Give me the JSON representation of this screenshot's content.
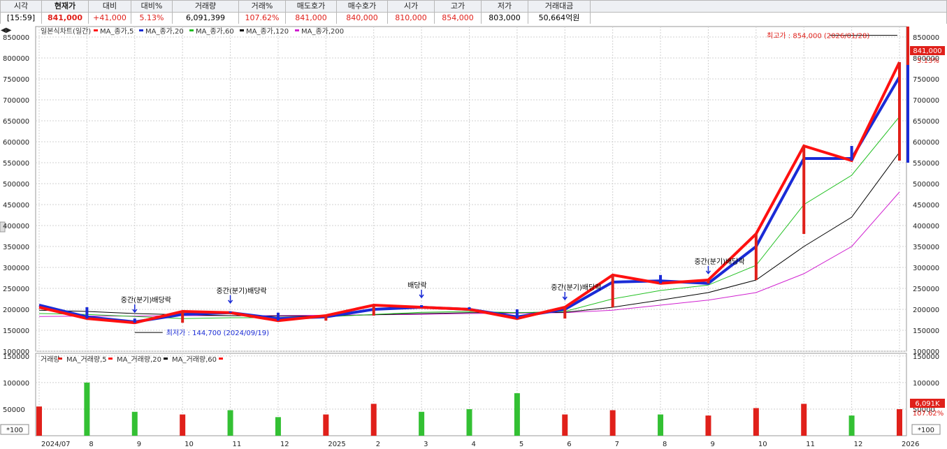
{
  "quote_bar": {
    "headers": [
      "시각",
      "현재가",
      "대비",
      "대비%",
      "거래량",
      "거래%",
      "매도호가",
      "매수호가",
      "시가",
      "고가",
      "저가",
      "거래대금"
    ],
    "values": [
      "[15:59]",
      "841,000",
      "+41,000",
      "5.13%",
      "6,091,399",
      "107.62%",
      "841,000",
      "840,000",
      "810,000",
      "854,000",
      "803,000",
      "50,664억원"
    ]
  },
  "colors": {
    "up": "#e0201a",
    "down": "#1a2bd6",
    "ma5": "#ff1010",
    "ma20": "#1a2bd6",
    "ma60": "#22c022",
    "ma120": "#000000",
    "ma200": "#d020d0"
  },
  "chart_data": {
    "type": "candlestick+line+bar",
    "price_panel": {
      "title": "일본식차트(일간)",
      "legend": [
        "MA_종가,5",
        "MA_종가,20",
        "MA_종가,60",
        "MA_종가,120",
        "MA_종가,200"
      ],
      "ylim": [
        100000,
        875000
      ],
      "y_ticks": [
        "850000",
        "800000",
        "750000",
        "700000",
        "650000",
        "600000",
        "550000",
        "500000",
        "450000",
        "400000",
        "350000",
        "300000",
        "250000",
        "200000",
        "150000",
        "100000"
      ],
      "x": [
        "2024/07",
        "8",
        "9",
        "10",
        "11",
        "12",
        "2025",
        "2",
        "3",
        "4",
        "5",
        "6",
        "7",
        "8",
        "9",
        "10",
        "11",
        "12",
        "2026"
      ],
      "close": [
        205000,
        178000,
        168000,
        195000,
        192000,
        173000,
        185000,
        210000,
        205000,
        200000,
        178000,
        205000,
        282000,
        262000,
        270000,
        380000,
        590000,
        555000,
        790000
      ],
      "ma5": [
        205000,
        178000,
        168000,
        195000,
        192000,
        173000,
        185000,
        210000,
        205000,
        200000,
        178000,
        205000,
        282000,
        262000,
        270000,
        380000,
        590000,
        555000,
        790000
      ],
      "ma20": [
        210000,
        182000,
        170000,
        188000,
        192000,
        178000,
        182000,
        200000,
        205000,
        200000,
        182000,
        200000,
        265000,
        268000,
        262000,
        350000,
        560000,
        560000,
        755000
      ],
      "ma60": [
        190000,
        188000,
        183000,
        178000,
        180000,
        180000,
        182000,
        188000,
        193000,
        195000,
        192000,
        195000,
        225000,
        245000,
        258000,
        305000,
        450000,
        520000,
        660000
      ],
      "ma120": [
        198000,
        195000,
        190000,
        187000,
        185000,
        184000,
        184000,
        187000,
        190000,
        192000,
        192000,
        193000,
        205000,
        222000,
        240000,
        270000,
        350000,
        420000,
        575000
      ],
      "ma200": [
        183000,
        184000,
        184000,
        185000,
        185000,
        185000,
        186000,
        187000,
        188000,
        190000,
        191000,
        192000,
        198000,
        210000,
        222000,
        240000,
        285000,
        350000,
        480000
      ],
      "annotations": [
        {
          "text": "최고가 : 854,000 (2026/01/28)",
          "value": 854000
        },
        {
          "text": "최저가 : 144,700 (2024/09/19)",
          "value": 144700
        },
        {
          "text": "중간(분기)배당락",
          "at": "9"
        },
        {
          "text": "배당락",
          "at": "3"
        },
        {
          "text": "중간(분기)배당락",
          "at": "6"
        },
        {
          "text": "중간(분기)배당락",
          "at": "9"
        },
        {
          "text": "중간(분기)배당락",
          "at": "11"
        }
      ],
      "last_price_label": "841,000",
      "last_change_label": "5.13%"
    },
    "volume_panel": {
      "legend": [
        "거래량",
        "MA_거래량,5",
        "MA_거래량,20",
        "MA_거래량,60"
      ],
      "ylim": [
        0,
        155000
      ],
      "y_ticks": [
        "150000",
        "100000",
        "50000"
      ],
      "unit": "*100",
      "volume": [
        55000,
        100000,
        45000,
        40000,
        48000,
        35000,
        40000,
        60000,
        45000,
        50000,
        80000,
        40000,
        48000,
        40000,
        38000,
        52000,
        60000,
        38000,
        50000
      ],
      "last_volume_label": "6,091K",
      "last_volume_pct": "107.62%"
    }
  }
}
